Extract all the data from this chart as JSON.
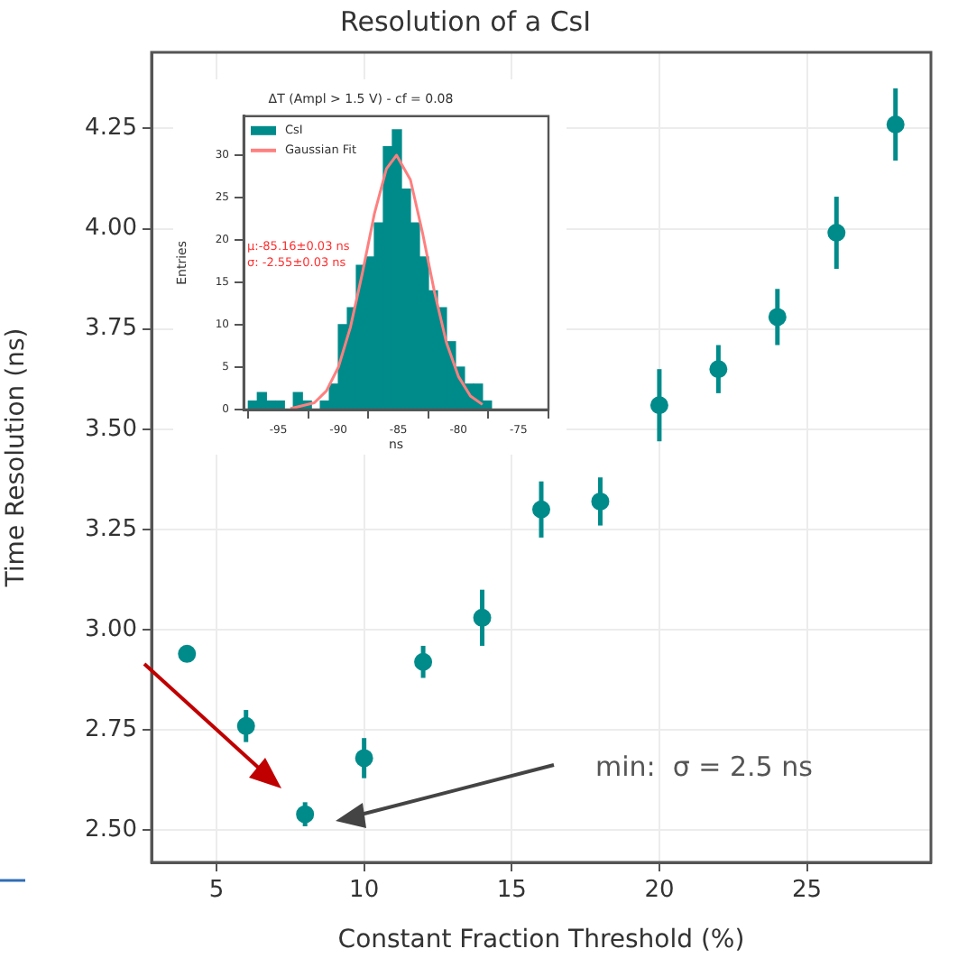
{
  "chart_data": [
    {
      "type": "scatter",
      "title": "Resolution of a CsI",
      "xlabel": "Constant Fraction Threshold (%)",
      "ylabel": "Time Resolution (ns)",
      "x": [
        4,
        6,
        8,
        10,
        12,
        14,
        16,
        18,
        20,
        22,
        24,
        26,
        28
      ],
      "values": [
        2.94,
        2.76,
        2.54,
        2.68,
        2.92,
        3.03,
        3.3,
        3.32,
        3.56,
        3.65,
        3.78,
        3.99,
        4.26
      ],
      "errors": [
        0.02,
        0.04,
        0.03,
        0.05,
        0.04,
        0.07,
        0.07,
        0.06,
        0.09,
        0.06,
        0.07,
        0.09,
        0.09
      ],
      "color": "#008b8b",
      "marker": "circle",
      "xlim": [
        2.8,
        29.2
      ],
      "xticks": [
        5,
        10,
        15,
        20,
        25
      ],
      "ylim": [
        2.42,
        4.44
      ],
      "yticks": [
        {
          "value": 2.5,
          "label": "2.50"
        },
        {
          "value": 2.75,
          "label": "2.75"
        },
        {
          "value": 3,
          "label": "3.00"
        },
        {
          "value": 3.25,
          "label": "3.25"
        },
        {
          "value": 3.5,
          "label": "3.50"
        },
        {
          "value": 3.75,
          "label": "3.75"
        },
        {
          "value": 4,
          "label": "4.00"
        },
        {
          "value": 4.25,
          "label": "4.25"
        }
      ],
      "grid": true,
      "annotations": [
        "min:  σ = 2.5 ns"
      ]
    },
    {
      "type": "histogram",
      "title": "ΔT (Ampl > 1.5 V) - cf = 0.08",
      "xlabel": "ns",
      "ylabel": "Entries",
      "bins": [
        -97.5,
        -96.75,
        -96,
        -95.25,
        -94.5,
        -93.75,
        -93,
        -92.25,
        -91.5,
        -90.75,
        -90,
        -89.25,
        -88.5,
        -87.75,
        -87,
        -86.25,
        -85.5,
        -84.75,
        -84,
        -83.25,
        -82.5,
        -81.75,
        -81,
        -80.25,
        -79.5,
        -78.75,
        -78,
        -77.25
      ],
      "series": [
        {
          "name": "CsI",
          "type": "histogram",
          "color": "#008b8b",
          "values": [
            1,
            2,
            1,
            1,
            0,
            2,
            1,
            0,
            1,
            3,
            10,
            12,
            17,
            18,
            22,
            31,
            33,
            26,
            22,
            18,
            14,
            12,
            8,
            5,
            3,
            3,
            1
          ]
        },
        {
          "name": "Gaussian Fit",
          "type": "line",
          "color": "#ff7f7f",
          "x": [
            -94,
            -92,
            -91,
            -90,
            -89,
            -88,
            -87,
            -86,
            -85.16,
            -84,
            -83,
            -82,
            -81,
            -80,
            -79,
            -78
          ],
          "values": [
            0.1,
            0.8,
            2.2,
            5,
            9.7,
            16.1,
            23.1,
            28.4,
            30,
            27.1,
            20.9,
            13.9,
            7.9,
            3.9,
            1.6,
            0.6
          ]
        }
      ],
      "xlim": [
        -97.9,
        -72.5
      ],
      "xticks": [
        -95,
        -90,
        -85,
        -80,
        -75
      ],
      "ylim": [
        0,
        34.6
      ],
      "yticks": [
        0,
        5,
        10,
        15,
        20,
        25,
        30
      ],
      "legend": "top left",
      "annotations": [
        "μ:-85.16±0.03 ns",
        "σ: -2.55±0.03 ns"
      ]
    }
  ]
}
